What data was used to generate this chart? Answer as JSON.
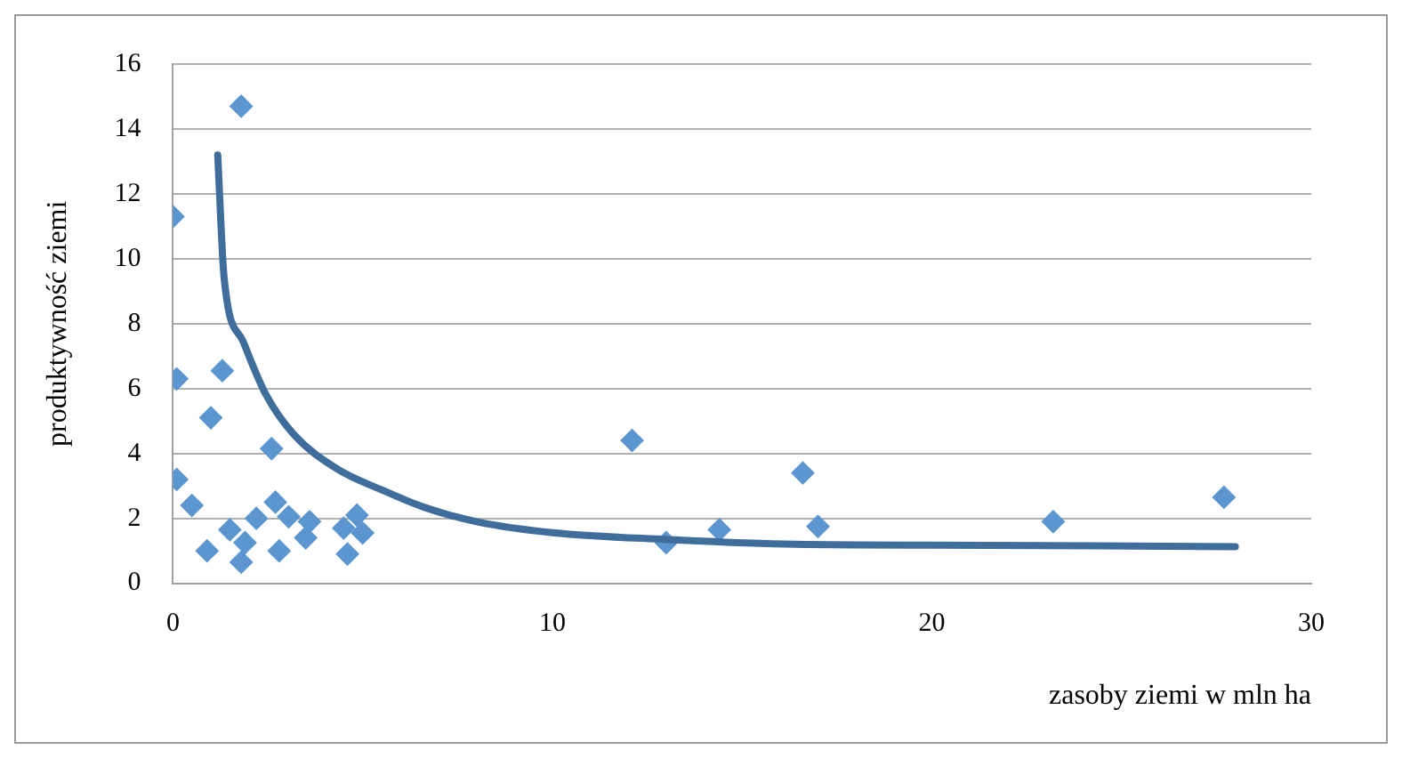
{
  "chart_data": {
    "type": "scatter",
    "xlabel": "zasoby ziemi w mln ha",
    "ylabel": "produktywność ziemi",
    "xlim": [
      0,
      30
    ],
    "xticks": [
      0,
      10,
      20,
      30
    ],
    "ylim": [
      0,
      16
    ],
    "yticks": [
      0,
      2,
      4,
      6,
      8,
      10,
      12,
      14,
      16
    ],
    "grid": "y",
    "legend": false,
    "series": [
      {
        "color": "#5b96d0",
        "marker": "diamond",
        "x": [
          0,
          0.1,
          1.3,
          1.0,
          2.6,
          0.1,
          0.5,
          0.9,
          1.5,
          1.8,
          1.9,
          1.8,
          2.2,
          2.7,
          3.05,
          2.8,
          3.6,
          3.5,
          4.6,
          4.5,
          4.85,
          5.0,
          12.1,
          13.0,
          14.4,
          16.6,
          17.0,
          23.2,
          27.7
        ],
        "values": [
          11.3,
          6.3,
          6.55,
          5.1,
          4.15,
          3.2,
          2.4,
          1.0,
          1.65,
          14.7,
          1.25,
          0.65,
          2.0,
          2.5,
          2.05,
          1.0,
          1.9,
          1.4,
          0.9,
          1.7,
          2.1,
          1.55,
          4.4,
          1.25,
          1.65,
          3.4,
          1.75,
          1.9,
          2.65
        ]
      },
      {
        "type": "line",
        "color": "#3f6d9c",
        "marker": "none",
        "x": [
          1.18,
          1.35,
          1.85,
          2.44,
          3.19,
          4.36,
          5.52,
          6.6,
          8.03,
          10.0,
          13.0,
          16.4,
          21.4,
          28.0
        ],
        "values": [
          13.2,
          9.4,
          7.45,
          5.84,
          4.58,
          3.5,
          2.87,
          2.35,
          1.89,
          1.56,
          1.35,
          1.2,
          1.17,
          1.13
        ]
      }
    ]
  }
}
